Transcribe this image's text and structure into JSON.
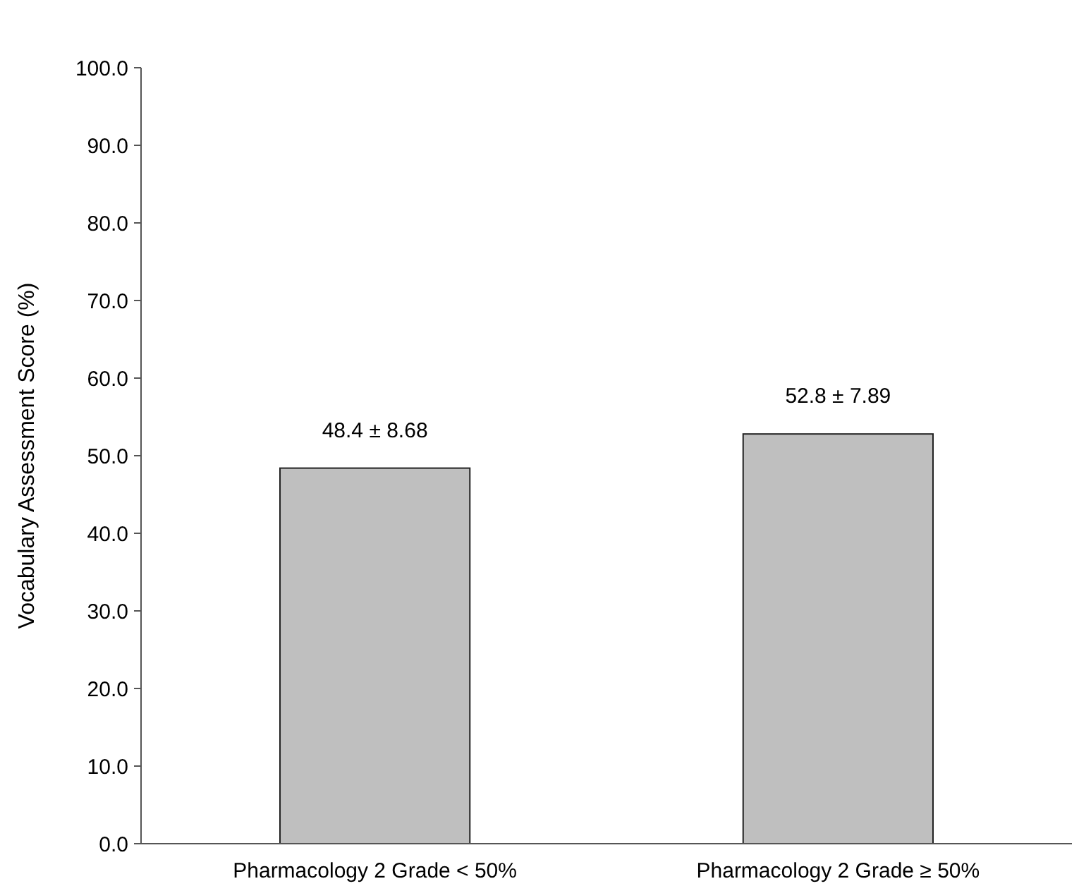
{
  "chart_data": {
    "type": "bar",
    "ylabel": "Vocabulary Assessment Score (%)",
    "categories": [
      "Pharmacology 2 Grade < 50%",
      "Pharmacology 2 Grade ≥ 50%"
    ],
    "values": [
      48.4,
      52.8
    ],
    "value_labels": [
      "48.4 ± 8.68",
      "52.8 ± 7.89"
    ],
    "color": "#bfbfbf",
    "ylim": [
      0,
      100
    ],
    "yticks": [
      {
        "value": 0,
        "label": "0.0"
      },
      {
        "value": 10,
        "label": "10.0"
      },
      {
        "value": 20,
        "label": "20.0"
      },
      {
        "value": 30,
        "label": "30.0"
      },
      {
        "value": 40,
        "label": "40.0"
      },
      {
        "value": 50,
        "label": "50.0"
      },
      {
        "value": 60,
        "label": "60.0"
      },
      {
        "value": 70,
        "label": "70.0"
      },
      {
        "value": 80,
        "label": "80.0"
      },
      {
        "value": 90,
        "label": "90.0"
      },
      {
        "value": 100,
        "label": "100.0"
      }
    ],
    "grid": false
  }
}
